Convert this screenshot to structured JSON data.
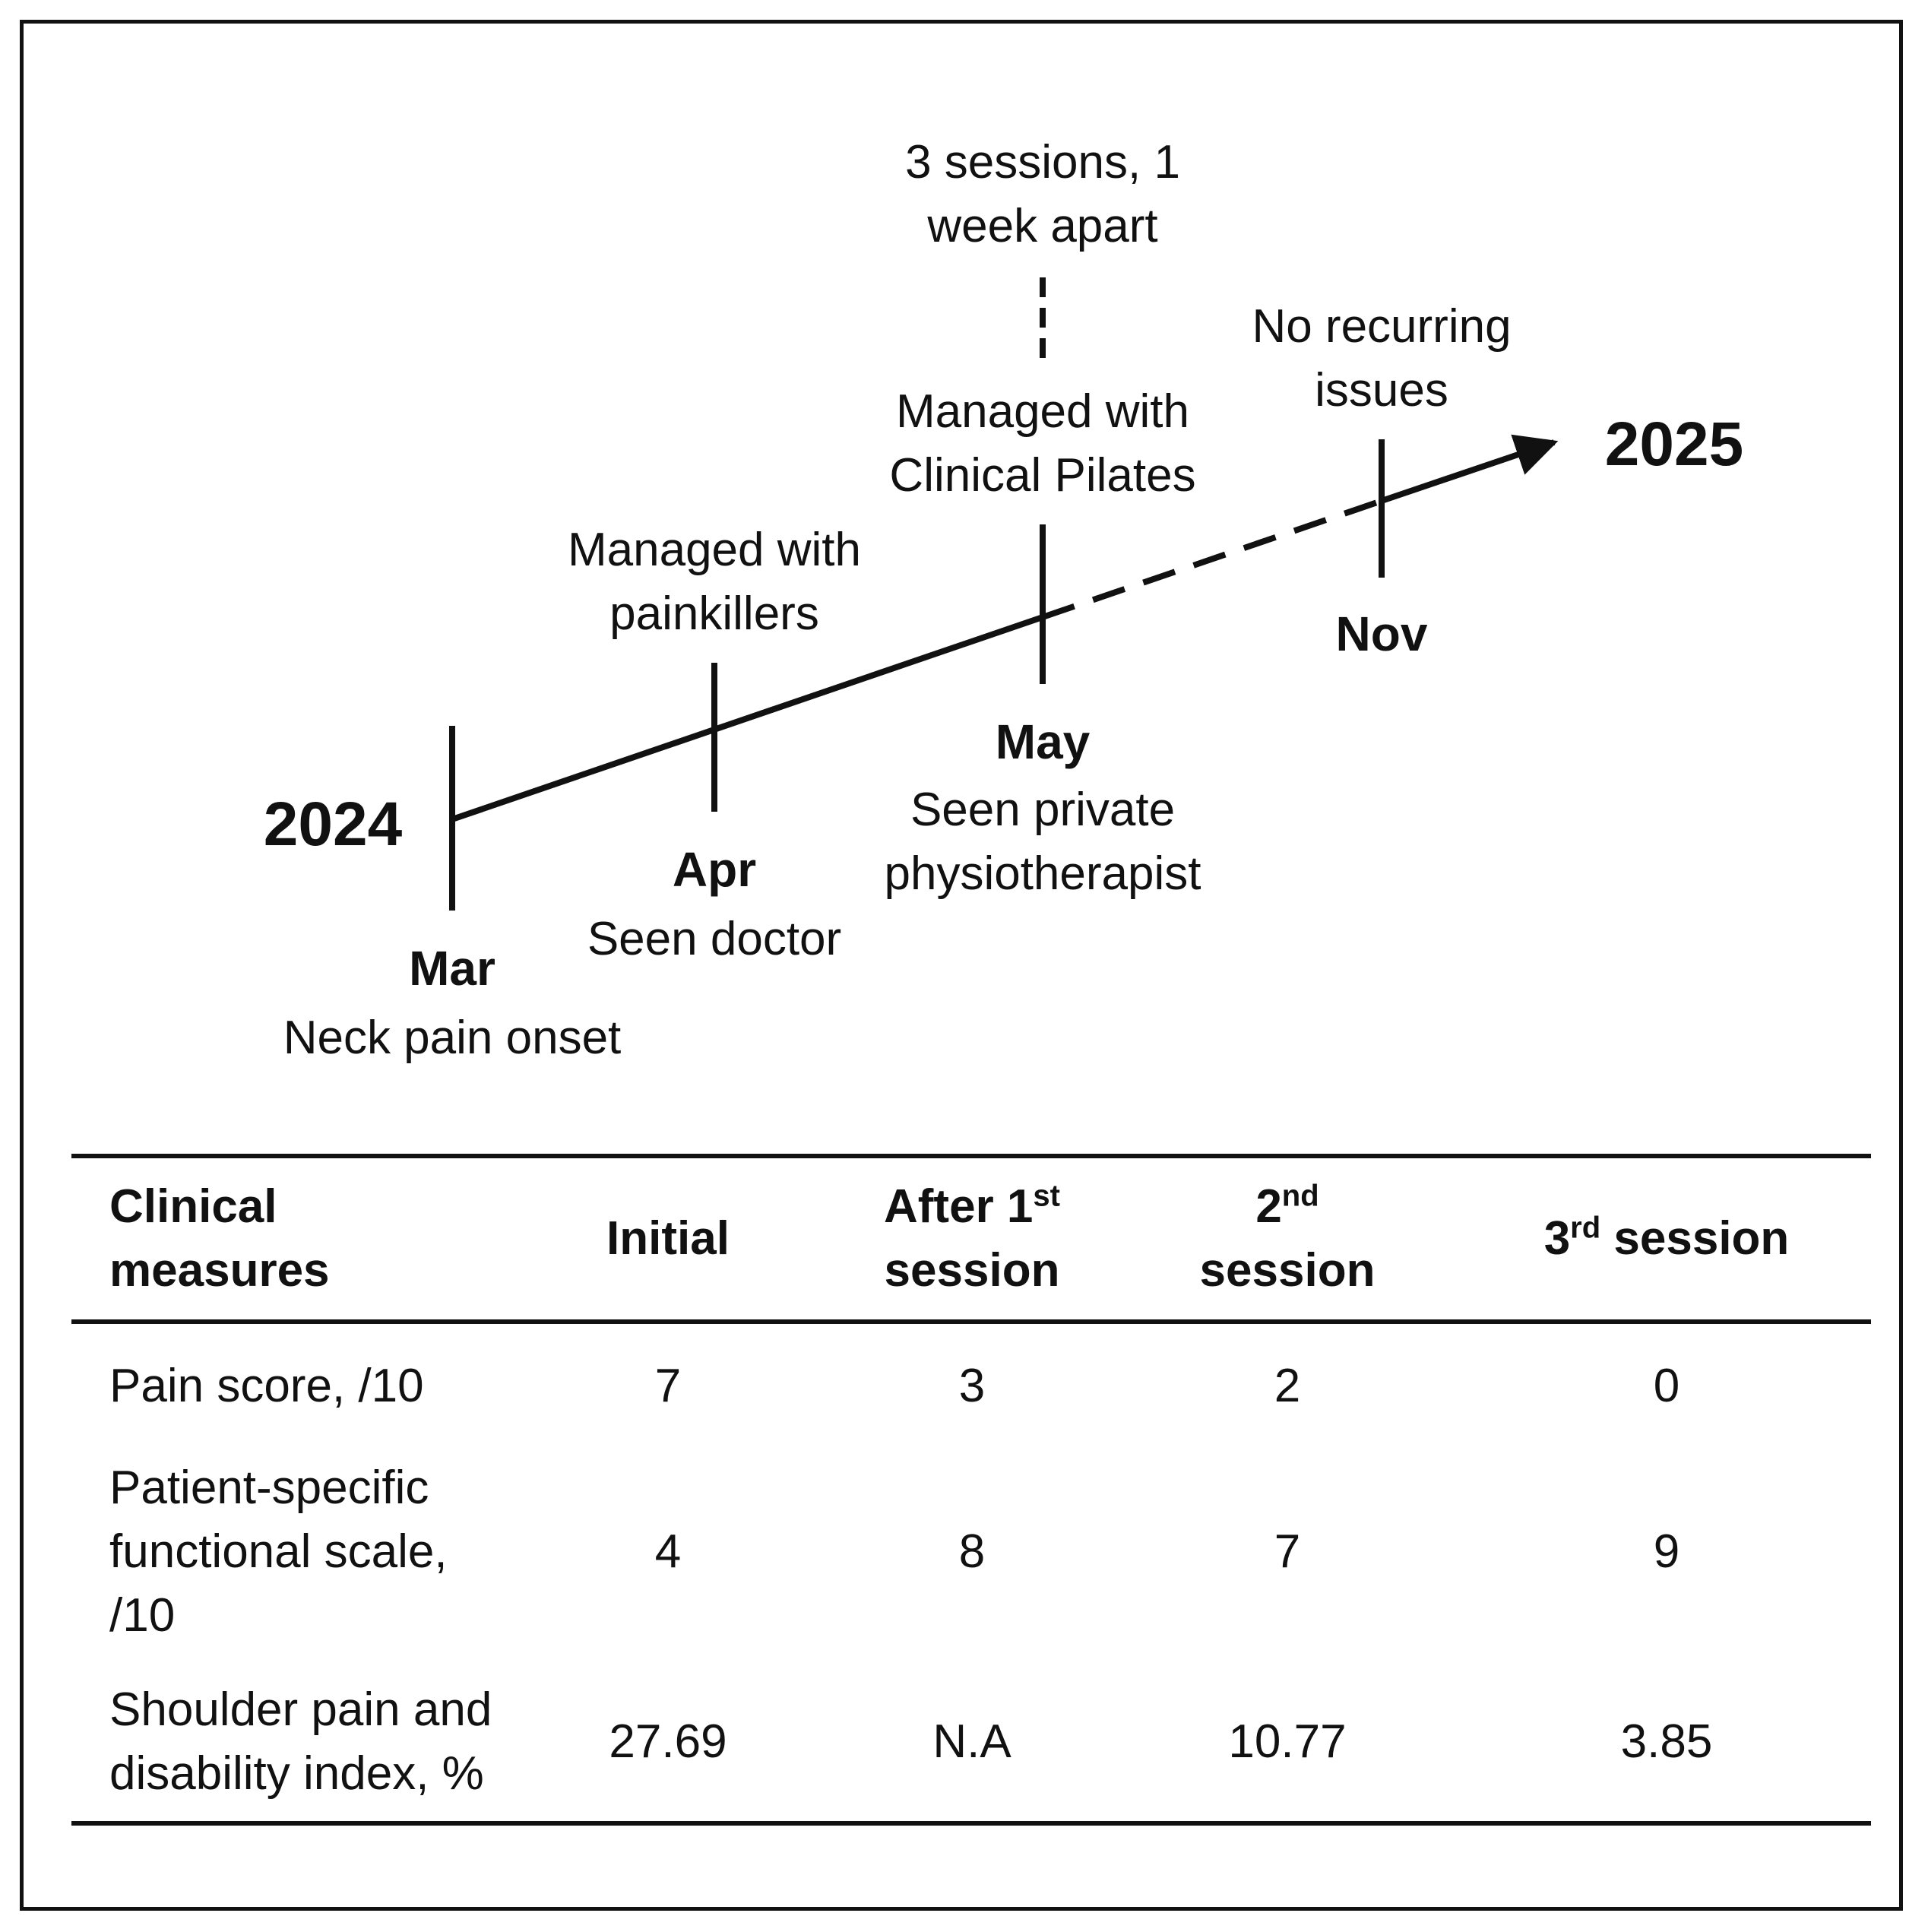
{
  "timeline": {
    "start_year": "2024",
    "end_year": "2025",
    "events": [
      {
        "month": "Mar",
        "description": "Neck pain onset"
      },
      {
        "month": "Apr",
        "description": "Seen doctor",
        "note_lines": [
          "Managed with",
          "painkillers"
        ]
      },
      {
        "month": "May",
        "description_lines": [
          "Seen private",
          "physiotherapist"
        ],
        "note_lines": [
          "Managed with",
          "Clinical Pilates"
        ],
        "detail_lines": [
          "3 sessions, 1",
          "week apart"
        ]
      },
      {
        "month": "Nov",
        "note_lines": [
          "No recurring",
          "issues"
        ]
      }
    ]
  },
  "table": {
    "headers": [
      {
        "lines": [
          "Clinical",
          "measures"
        ]
      },
      {
        "lines": [
          "Initial"
        ]
      },
      {
        "line1": "After 1",
        "line1_sup": "st",
        "line2": "session"
      },
      {
        "line1": "2",
        "line1_sup": "nd",
        "line2": "session"
      },
      {
        "line1": "3",
        "line1_sup": "rd",
        "line1_rest": " session"
      }
    ],
    "rows": [
      {
        "label_lines": [
          "Pain score, /10"
        ],
        "values": [
          "7",
          "3",
          "2",
          "0"
        ]
      },
      {
        "label_lines": [
          "Patient-specific",
          "functional scale,",
          "/10"
        ],
        "values": [
          "4",
          "8",
          "7",
          "9"
        ]
      },
      {
        "label_lines": [
          "Shoulder pain and",
          "disability index, %"
        ],
        "values": [
          "27.69",
          "N.A",
          "10.77",
          "3.85"
        ]
      }
    ]
  }
}
